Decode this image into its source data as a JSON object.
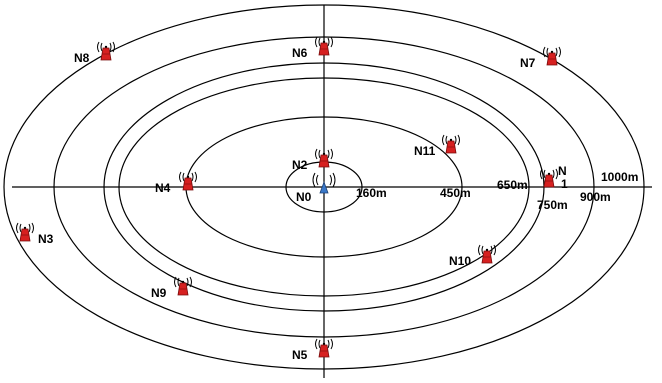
{
  "diagram": {
    "center_node": {
      "label": "N0",
      "color": "#3a78c8"
    },
    "ring_labels": [
      "160m",
      "450m",
      "650m",
      "750m",
      "900m",
      "1000m"
    ],
    "nodes": [
      {
        "id": "n1",
        "label": "N",
        "label2": "1"
      },
      {
        "id": "n2",
        "label": "N2"
      },
      {
        "id": "n3",
        "label": "N3"
      },
      {
        "id": "n4",
        "label": "N4"
      },
      {
        "id": "n5",
        "label": "N5"
      },
      {
        "id": "n6",
        "label": "N6"
      },
      {
        "id": "n7",
        "label": "N7"
      },
      {
        "id": "n8",
        "label": "N8"
      },
      {
        "id": "n9",
        "label": "N9"
      },
      {
        "id": "n10",
        "label": "N10"
      },
      {
        "id": "n11",
        "label": "N11"
      }
    ],
    "node_color": "#d62020"
  }
}
